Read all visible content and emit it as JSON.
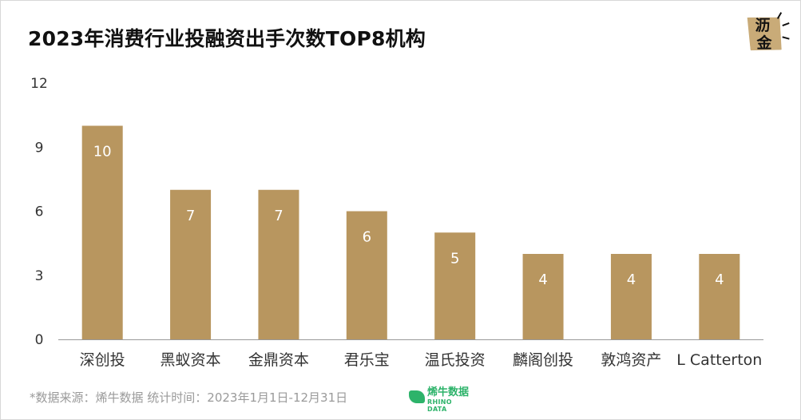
{
  "title": "2023年消费行业投融资出手次数TOP8机构",
  "logo": {
    "char1": "沥",
    "char2": "金"
  },
  "colors": {
    "bar": "#b8965f",
    "axis": "#999999",
    "text": "#333333",
    "brand": "#2db36a"
  },
  "footer": {
    "source_text": "*数据来源：烯牛数据 统计时间：2023年1月1日-12月31日"
  },
  "brand": {
    "name": "烯牛数据",
    "sub": "RHINO DATA"
  },
  "chart_data": {
    "type": "bar",
    "title": "2023年消费行业投融资出手次数TOP8机构",
    "categories": [
      "深创投",
      "黑蚁资本",
      "金鼎资本",
      "君乐宝",
      "温氏投资",
      "麟阁创投",
      "敦鸿资产",
      "L Catterton"
    ],
    "values": [
      10,
      7,
      7,
      6,
      5,
      4,
      4,
      4
    ],
    "data_labels": [
      "10",
      "7",
      "7",
      "6",
      "5",
      "4",
      "4",
      "4"
    ],
    "yticks": [
      0,
      3,
      6,
      9,
      12
    ],
    "ylim": [
      0,
      12
    ],
    "xlabel": "",
    "ylabel": "",
    "grid": false,
    "legend": "none"
  }
}
